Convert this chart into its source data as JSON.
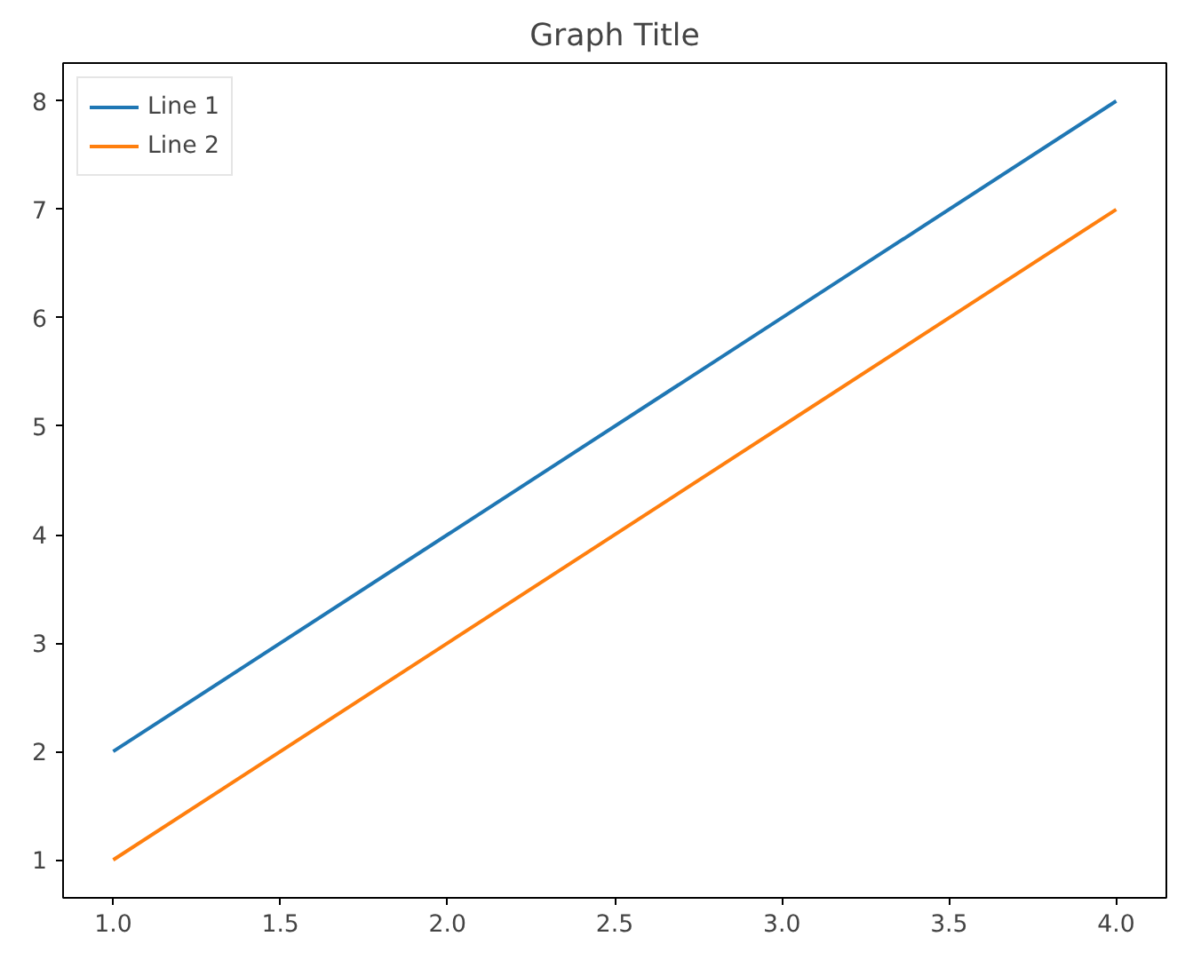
{
  "chart_data": {
    "type": "line",
    "title": "Graph Title",
    "x": [
      1,
      2,
      3,
      4
    ],
    "series": [
      {
        "name": "Line 1",
        "color": "#1f77b4",
        "values": [
          2,
          4,
          6,
          8
        ]
      },
      {
        "name": "Line 2",
        "color": "#ff7f0e",
        "values": [
          1,
          3,
          5,
          7
        ]
      }
    ],
    "xlim": [
      0.85,
      4.15
    ],
    "xticks": [
      {
        "value": 1,
        "label": "1.0"
      },
      {
        "value": 1.5,
        "label": "1.5"
      },
      {
        "value": 2,
        "label": "2.0"
      },
      {
        "value": 2.5,
        "label": "2.5"
      },
      {
        "value": 3,
        "label": "3.0"
      },
      {
        "value": 3.5,
        "label": "3.5"
      },
      {
        "value": 4,
        "label": "4.0"
      }
    ],
    "ylim": [
      0.65,
      8.35
    ],
    "yticks": [
      1,
      2,
      3,
      4,
      5,
      6,
      7,
      8
    ],
    "grid": false,
    "legend": "top left",
    "marker": "none",
    "line_style": "solid"
  }
}
